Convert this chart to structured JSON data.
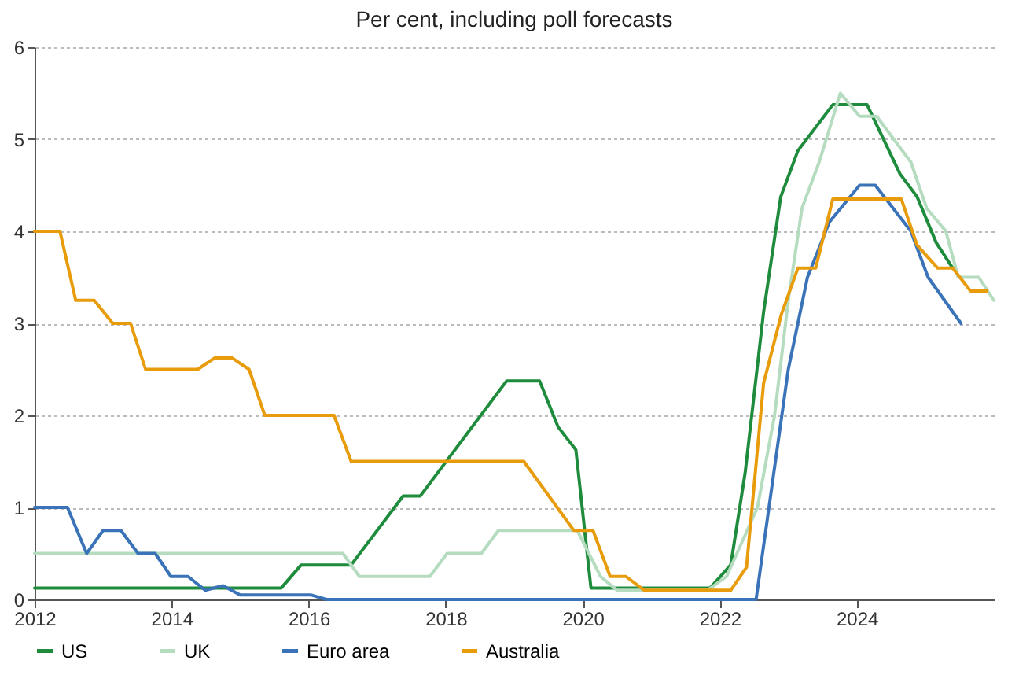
{
  "chart_data": {
    "type": "line",
    "title": "Per cent, including poll forecasts",
    "xlim": [
      2012,
      2026
    ],
    "xticks": [
      2012,
      2014,
      2016,
      2018,
      2020,
      2022,
      2024
    ],
    "ylim": [
      0,
      6
    ],
    "yticks": [
      0,
      1,
      2,
      3,
      4,
      5,
      6
    ],
    "grid": "y",
    "legend": "bottom",
    "marker": "none",
    "line_style": "solid",
    "series": [
      {
        "name": "US",
        "color": "#1e8c3c",
        "x": [
          2012,
          2015.6,
          2015.89,
          2016.62,
          2017.38,
          2017.63,
          2018.89,
          2019.37,
          2019.64,
          2019.9,
          2020.12,
          2021.86,
          2022.16,
          2022.37,
          2022.64,
          2022.89,
          2023.14,
          2023.65,
          2024.15,
          2024.63,
          2024.88,
          2025.16,
          2025.4
        ],
        "values": [
          0.125,
          0.125,
          0.375,
          0.375,
          1.125,
          1.125,
          2.375,
          2.375,
          1.875,
          1.625,
          0.125,
          0.125,
          0.375,
          1.375,
          3.125,
          4.375,
          4.875,
          5.375,
          5.375,
          4.625,
          4.375,
          3.875,
          3.6
        ]
      },
      {
        "name": "UK",
        "color": "#b6dcc0",
        "x": [
          2012,
          2016.5,
          2016.74,
          2017.77,
          2018.02,
          2018.52,
          2018.77,
          2019.92,
          2020.26,
          2020.5,
          2021.82,
          2022.1,
          2022.55,
          2022.8,
          2023.0,
          2023.2,
          2023.45,
          2023.76,
          2024.04,
          2024.29,
          2024.79,
          2025.02,
          2025.3,
          2025.48,
          2025.78,
          2026.0
        ],
        "values": [
          0.5,
          0.5,
          0.25,
          0.25,
          0.5,
          0.5,
          0.75,
          0.75,
          0.25,
          0.1,
          0.1,
          0.25,
          1.0,
          2.0,
          3.25,
          4.25,
          4.75,
          5.5,
          5.25,
          5.25,
          4.75,
          4.25,
          4.0,
          3.5,
          3.5,
          3.25
        ]
      },
      {
        "name": "Euro area",
        "color": "#3a73b8",
        "x": [
          2012,
          2012.48,
          2012.76,
          2013.0,
          2013.26,
          2013.51,
          2013.76,
          2013.99,
          2014.24,
          2014.49,
          2014.75,
          2015.0,
          2016.03,
          2016.26,
          2022.53,
          2023.0,
          2023.28,
          2023.6,
          2024.04,
          2024.27,
          2024.79,
          2025.04,
          2025.52
        ],
        "values": [
          1.0,
          1.0,
          0.5,
          0.75,
          0.75,
          0.5,
          0.5,
          0.25,
          0.25,
          0.1,
          0.15,
          0.05,
          0.05,
          0,
          0,
          2.5,
          3.5,
          4.1,
          4.5,
          4.5,
          4.0,
          3.5,
          3.0
        ]
      },
      {
        "name": "Australia",
        "color": "#e89c0c",
        "x": [
          2012,
          2012.37,
          2012.6,
          2012.87,
          2013.14,
          2013.4,
          2013.62,
          2014.38,
          2014.63,
          2014.88,
          2015.13,
          2015.36,
          2016.37,
          2016.62,
          2019.14,
          2019.87,
          2020.15,
          2020.4,
          2020.63,
          2020.9,
          2022.16,
          2022.39,
          2022.64,
          2022.9,
          2023.14,
          2023.4,
          2023.65,
          2024.65,
          2024.88,
          2025.18,
          2025.4,
          2025.66,
          2025.9
        ],
        "values": [
          4.0,
          4.0,
          3.25,
          3.25,
          3.0,
          3.0,
          2.5,
          2.5,
          2.625,
          2.625,
          2.5,
          2.0,
          2.0,
          1.5,
          1.5,
          0.75,
          0.75,
          0.25,
          0.25,
          0.1,
          0.1,
          0.35,
          2.35,
          3.1,
          3.6,
          3.6,
          4.35,
          4.35,
          3.85,
          3.6,
          3.6,
          3.35,
          3.35
        ]
      }
    ]
  }
}
